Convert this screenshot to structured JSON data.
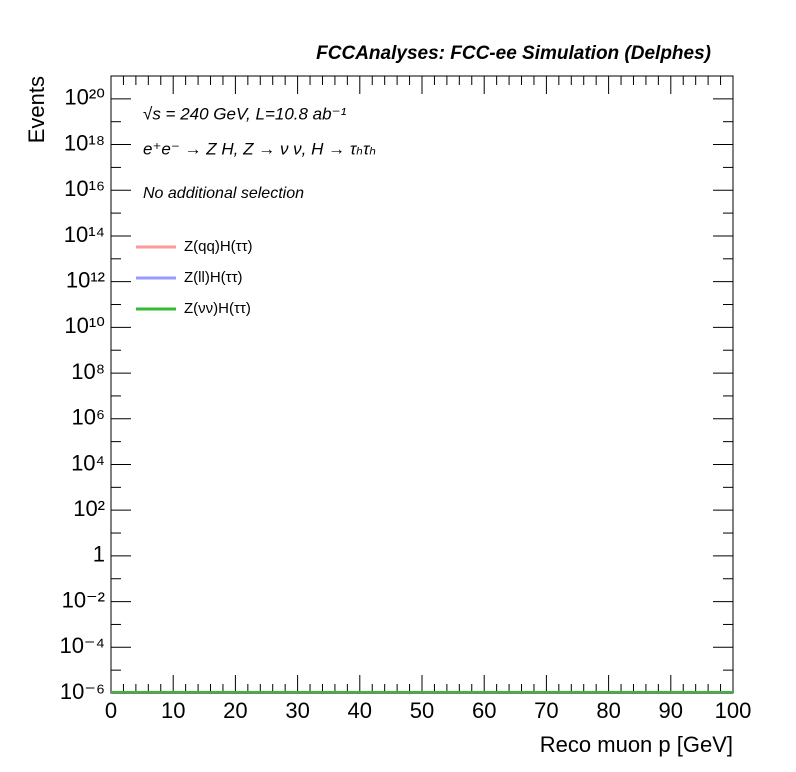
{
  "chart_data": {
    "type": "line",
    "title": "FCCAnalyses: FCC-ee Simulation (Delphes)",
    "x_label": "Reco muon p [GeV]",
    "y_label": "Events",
    "annotations": [
      "√s = 240 GeV, L=10.8 ab⁻¹",
      "e⁺e⁻ → Z H, Z → ν ν, H → τₕτₕ",
      "No additional selection"
    ],
    "xlim": [
      0,
      100
    ],
    "xticks": [
      0,
      10,
      20,
      30,
      40,
      50,
      60,
      70,
      80,
      90,
      100
    ],
    "ylim": [
      1e-06,
      1e+21
    ],
    "log_y": true,
    "yticks": [
      {
        "value": 1e-06,
        "label": "10⁻⁶"
      },
      {
        "value": 0.0001,
        "label": "10⁻⁴"
      },
      {
        "value": 0.01,
        "label": "10⁻²"
      },
      1,
      {
        "value": 100,
        "label": "10²"
      },
      {
        "value": 10000.0,
        "label": "10⁴"
      },
      {
        "value": 1000000.0,
        "label": "10⁶"
      },
      {
        "value": 100000000.0,
        "label": "10⁸"
      },
      {
        "value": 10000000000.0,
        "label": "10¹⁰"
      },
      {
        "value": 1000000000000.0,
        "label": "10¹²"
      },
      {
        "value": 100000000000000.0,
        "label": "10¹⁴"
      },
      {
        "value": 1e+16,
        "label": "10¹⁶"
      },
      {
        "value": 1e+18,
        "label": "10¹⁸"
      },
      {
        "value": 1e+20,
        "label": "10²⁰"
      }
    ],
    "series": [
      {
        "name": "Z(qq)H(ττ)",
        "color": "#ff9999"
      },
      {
        "name": "Z(ll)H(ττ)",
        "color": "#9999ff"
      },
      {
        "name": "Z(νν)H(ττ)",
        "color": "#33bb33"
      }
    ]
  }
}
